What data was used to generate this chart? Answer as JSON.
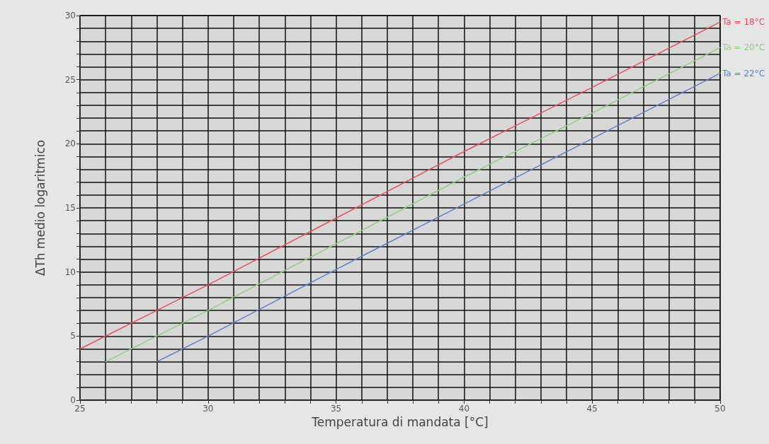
{
  "chart_data": {
    "type": "line",
    "xlabel": "Temperatura di mandata [°C]",
    "ylabel": "ΔTh medio logaritmico",
    "xlim": [
      25,
      50
    ],
    "xticks": [
      25,
      {
        "value": 26,
        "label": null
      },
      {
        "value": 27,
        "label": null
      },
      {
        "value": 28,
        "label": null
      },
      {
        "value": 29,
        "label": null
      },
      30,
      {
        "value": 31,
        "label": null
      },
      {
        "value": 32,
        "label": null
      },
      {
        "value": 33,
        "label": null
      },
      {
        "value": 34,
        "label": null
      },
      35,
      {
        "value": 36,
        "label": null
      },
      {
        "value": 37,
        "label": null
      },
      {
        "value": 38,
        "label": null
      },
      {
        "value": 39,
        "label": null
      },
      40,
      {
        "value": 41,
        "label": null
      },
      {
        "value": 42,
        "label": null
      },
      {
        "value": 43,
        "label": null
      },
      {
        "value": 44,
        "label": null
      },
      45,
      {
        "value": 46,
        "label": null
      },
      {
        "value": 47,
        "label": null
      },
      {
        "value": 48,
        "label": null
      },
      {
        "value": 49,
        "label": null
      },
      50
    ],
    "ylim": [
      0,
      30
    ],
    "yticks": [
      0,
      {
        "value": 1,
        "label": null
      },
      {
        "value": 2,
        "label": null
      },
      {
        "value": 3,
        "label": null
      },
      {
        "value": 4,
        "label": null
      },
      5,
      {
        "value": 6,
        "label": null
      },
      {
        "value": 7,
        "label": null
      },
      {
        "value": 8,
        "label": null
      },
      {
        "value": 9,
        "label": null
      },
      10,
      {
        "value": 11,
        "label": null
      },
      {
        "value": 12,
        "label": null
      },
      {
        "value": 13,
        "label": null
      },
      {
        "value": 14,
        "label": null
      },
      15,
      {
        "value": 16,
        "label": null
      },
      {
        "value": 17,
        "label": null
      },
      {
        "value": 18,
        "label": null
      },
      {
        "value": 19,
        "label": null
      },
      20,
      {
        "value": 21,
        "label": null
      },
      {
        "value": 22,
        "label": null
      },
      {
        "value": 23,
        "label": null
      },
      {
        "value": 24,
        "label": null
      },
      25,
      {
        "value": 26,
        "label": null
      },
      {
        "value": 27,
        "label": null
      },
      {
        "value": 28,
        "label": null
      },
      {
        "value": 29,
        "label": null
      },
      30
    ],
    "grid": true,
    "legend": false,
    "marker": "none",
    "line_style": "solid",
    "series": [
      {
        "name": "Ta = 18°C",
        "color": "#e8505a",
        "x": [
          25,
          30,
          35,
          40,
          45,
          50
        ],
        "values": [
          4,
          9,
          14.2,
          19.4,
          24.4,
          29.5
        ]
      },
      {
        "name": "Ta = 20°C",
        "color": "#8fd07a",
        "x": [
          26,
          30,
          35,
          40,
          45,
          50
        ],
        "values": [
          3,
          7,
          12.2,
          17.4,
          22.4,
          27.5
        ]
      },
      {
        "name": "Ta = 22°C",
        "color": "#5b7fd0",
        "x": [
          28,
          30,
          35,
          40,
          45,
          50
        ],
        "values": [
          3,
          5,
          10.2,
          15.3,
          20.4,
          25.5
        ]
      }
    ]
  }
}
